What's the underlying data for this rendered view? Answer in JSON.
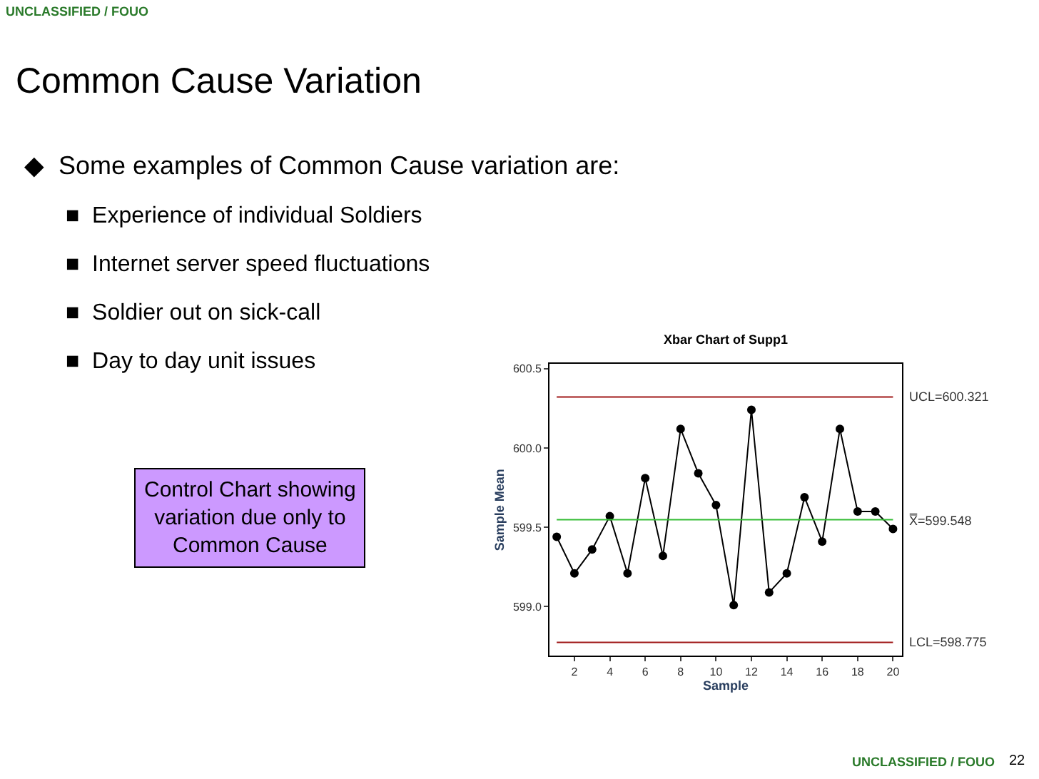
{
  "chart_data": {
    "type": "line",
    "title": "Xbar Chart of Supp1",
    "xlabel": "Sample",
    "ylabel": "Sample Mean",
    "x": [
      1,
      2,
      3,
      4,
      5,
      6,
      7,
      8,
      9,
      10,
      11,
      12,
      13,
      14,
      15,
      16,
      17,
      18,
      19,
      20
    ],
    "series": [
      {
        "color": "#000000",
        "values": [
          599.44,
          599.21,
          599.36,
          599.57,
          599.21,
          599.81,
          599.32,
          600.12,
          599.84,
          599.64,
          599.01,
          600.24,
          599.09,
          599.21,
          599.69,
          599.41,
          600.12,
          599.6,
          599.6,
          599.49
        ]
      }
    ],
    "xlim": [
      0.6,
      20.5
    ],
    "xticks": [
      2,
      4,
      6,
      8,
      10,
      12,
      14,
      16,
      18,
      20
    ],
    "ylim": [
      598.69,
      600.53
    ],
    "yticks": [
      {
        "value": 599.0,
        "label": "599.0"
      },
      {
        "value": 599.5,
        "label": "599.5"
      },
      {
        "value": 600.0,
        "label": "600.0"
      },
      {
        "value": 600.5,
        "label": "600.5"
      }
    ],
    "ref_lines": [
      {
        "axis": "y",
        "value": 600.321,
        "label": "UCL=600.321",
        "color": "#a01818"
      },
      {
        "axis": "y",
        "value": 599.548,
        "label": "X̿=599.548",
        "color": "#33bb33"
      },
      {
        "axis": "y",
        "value": 598.775,
        "label": "LCL=598.775",
        "color": "#a01818"
      }
    ],
    "marker": "circle",
    "line_style": "solid",
    "legend": false,
    "annotations": [
      "UNCLASSIFIED / FOUO",
      "Common Cause Variation",
      "◆  Some examples of Common Cause variation are:",
      "■  Experience of individual Soldiers",
      "■  Internet server speed fluctuations",
      "■  Soldier out on sick-call",
      "■  Day to day unit issues",
      "Control Chart showing\nvariation due only to\nCommon Cause",
      "UNCLASSIFIED / FOUO",
      "22"
    ]
  }
}
